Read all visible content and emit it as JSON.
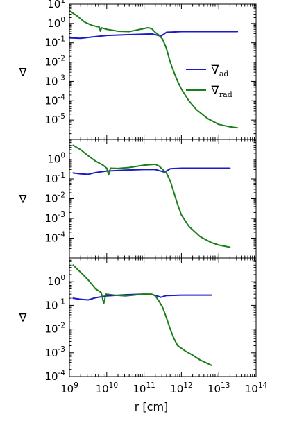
{
  "chart_data": {
    "type": "line",
    "x_scale": "log",
    "y_scale": "log",
    "xlabel": "r [cm]",
    "xlim_exp": [
      9,
      14
    ],
    "x_tick_labels": [
      {
        "base": "10",
        "exp": "9"
      },
      {
        "base": "10",
        "exp": "10"
      },
      {
        "base": "10",
        "exp": "11"
      },
      {
        "base": "10",
        "exp": "12"
      },
      {
        "base": "10",
        "exp": "13"
      },
      {
        "base": "10",
        "exp": "14"
      }
    ],
    "colors": {
      "ad": "#1a1acc",
      "rad": "#1a7f1a"
    },
    "legend": {
      "placement": "upper-right",
      "entries": [
        {
          "symbol": "∇",
          "sub": "ad",
          "color": "#1a1acc"
        },
        {
          "symbol": "∇",
          "sub": "rad",
          "color": "#1a7f1a"
        }
      ]
    },
    "panels": [
      {
        "ylabel": "∇",
        "ylim_exp": [
          -6,
          1
        ],
        "y_tick_labels": [
          {
            "base": "10",
            "exp": "-5"
          },
          {
            "base": "10",
            "exp": "-4"
          },
          {
            "base": "10",
            "exp": "-3"
          },
          {
            "base": "10",
            "exp": "-2"
          },
          {
            "base": "10",
            "exp": "-1"
          },
          {
            "base": "10",
            "exp": "0"
          },
          {
            "base": "10",
            "exp": "1"
          }
        ],
        "series": [
          {
            "key": "ad",
            "points": [
              [
                9.0,
                0.18
              ],
              [
                9.3,
                0.17
              ],
              [
                9.6,
                0.2
              ],
              [
                10.0,
                0.24
              ],
              [
                10.5,
                0.26
              ],
              [
                11.0,
                0.28
              ],
              [
                11.2,
                0.29
              ],
              [
                11.35,
                0.25
              ],
              [
                11.45,
                0.22
              ],
              [
                11.6,
                0.35
              ],
              [
                12.0,
                0.38
              ],
              [
                12.5,
                0.38
              ],
              [
                13.0,
                0.38
              ],
              [
                13.5,
                0.38
              ]
            ]
          },
          {
            "key": "rad",
            "points": [
              [
                9.0,
                4.5
              ],
              [
                9.2,
                2.5
              ],
              [
                9.4,
                1.2
              ],
              [
                9.6,
                0.8
              ],
              [
                9.8,
                0.65
              ],
              [
                9.83,
                0.4
              ],
              [
                9.86,
                0.6
              ],
              [
                10.0,
                0.5
              ],
              [
                10.3,
                0.4
              ],
              [
                10.6,
                0.38
              ],
              [
                10.9,
                0.5
              ],
              [
                11.1,
                0.6
              ],
              [
                11.2,
                0.55
              ],
              [
                11.3,
                0.35
              ],
              [
                11.4,
                0.25
              ],
              [
                11.5,
                0.15
              ],
              [
                11.6,
                0.05
              ],
              [
                11.7,
                0.01
              ],
              [
                11.8,
                0.003
              ],
              [
                11.9,
                0.001
              ],
              [
                12.0,
                0.0004
              ],
              [
                12.2,
                0.0001
              ],
              [
                12.4,
                3.5e-05
              ],
              [
                12.7,
                1.2e-05
              ],
              [
                13.0,
                6e-06
              ],
              [
                13.3,
                4.5e-06
              ],
              [
                13.5,
                4e-06
              ]
            ]
          }
        ]
      },
      {
        "ylabel": "∇",
        "ylim_exp": [
          -5,
          1
        ],
        "y_tick_labels": [
          {
            "base": "10",
            "exp": "-4"
          },
          {
            "base": "10",
            "exp": "-3"
          },
          {
            "base": "10",
            "exp": "-2"
          },
          {
            "base": "10",
            "exp": "-1"
          },
          {
            "base": "10",
            "exp": "0"
          }
        ],
        "series": [
          {
            "key": "ad",
            "points": [
              [
                9.1,
                0.2
              ],
              [
                9.3,
                0.18
              ],
              [
                9.5,
                0.17
              ],
              [
                9.7,
                0.21
              ],
              [
                10.0,
                0.25
              ],
              [
                10.5,
                0.28
              ],
              [
                11.0,
                0.3
              ],
              [
                11.3,
                0.3
              ],
              [
                11.45,
                0.25
              ],
              [
                11.55,
                0.22
              ],
              [
                11.7,
                0.33
              ],
              [
                12.0,
                0.35
              ],
              [
                12.5,
                0.35
              ],
              [
                13.0,
                0.35
              ],
              [
                13.3,
                0.35
              ]
            ]
          },
          {
            "key": "rad",
            "points": [
              [
                9.1,
                5.0
              ],
              [
                9.3,
                3.0
              ],
              [
                9.5,
                1.5
              ],
              [
                9.7,
                0.8
              ],
              [
                9.9,
                0.5
              ],
              [
                10.0,
                0.35
              ],
              [
                10.05,
                0.16
              ],
              [
                10.1,
                0.35
              ],
              [
                10.3,
                0.34
              ],
              [
                10.6,
                0.38
              ],
              [
                11.0,
                0.5
              ],
              [
                11.3,
                0.55
              ],
              [
                11.4,
                0.45
              ],
              [
                11.5,
                0.3
              ],
              [
                11.6,
                0.2
              ],
              [
                11.7,
                0.08
              ],
              [
                11.8,
                0.02
              ],
              [
                11.9,
                0.005
              ],
              [
                12.0,
                0.0015
              ],
              [
                12.2,
                0.0004
              ],
              [
                12.5,
                0.00012
              ],
              [
                12.8,
                6e-05
              ],
              [
                13.0,
                4.5e-05
              ],
              [
                13.3,
                3.5e-05
              ]
            ]
          }
        ]
      },
      {
        "ylabel": "∇",
        "ylim_exp": [
          -4,
          1
        ],
        "y_tick_labels": [
          {
            "base": "10",
            "exp": "-4"
          },
          {
            "base": "10",
            "exp": "-3"
          },
          {
            "base": "10",
            "exp": "-2"
          },
          {
            "base": "10",
            "exp": "-1"
          },
          {
            "base": "10",
            "exp": "0"
          }
        ],
        "series": [
          {
            "key": "ad",
            "points": [
              [
                9.1,
                0.2
              ],
              [
                9.3,
                0.18
              ],
              [
                9.5,
                0.17
              ],
              [
                9.7,
                0.21
              ],
              [
                10.0,
                0.25
              ],
              [
                10.5,
                0.28
              ],
              [
                11.0,
                0.3
              ],
              [
                11.2,
                0.29
              ],
              [
                11.35,
                0.25
              ],
              [
                11.45,
                0.22
              ],
              [
                11.6,
                0.26
              ],
              [
                12.0,
                0.27
              ],
              [
                12.5,
                0.27
              ],
              [
                12.8,
                0.27
              ]
            ]
          },
          {
            "key": "rad",
            "points": [
              [
                9.1,
                5.0
              ],
              [
                9.3,
                2.5
              ],
              [
                9.5,
                1.2
              ],
              [
                9.7,
                0.5
              ],
              [
                9.85,
                0.35
              ],
              [
                9.92,
                0.12
              ],
              [
                9.98,
                0.3
              ],
              [
                10.2,
                0.27
              ],
              [
                10.5,
                0.25
              ],
              [
                10.8,
                0.28
              ],
              [
                11.0,
                0.3
              ],
              [
                11.2,
                0.3
              ],
              [
                11.3,
                0.25
              ],
              [
                11.4,
                0.15
              ],
              [
                11.5,
                0.08
              ],
              [
                11.6,
                0.03
              ],
              [
                11.7,
                0.01
              ],
              [
                11.8,
                0.004
              ],
              [
                11.9,
                0.002
              ],
              [
                12.1,
                0.0012
              ],
              [
                12.3,
                0.0008
              ],
              [
                12.5,
                0.0005
              ],
              [
                12.8,
                0.0003
              ]
            ]
          }
        ]
      }
    ]
  }
}
